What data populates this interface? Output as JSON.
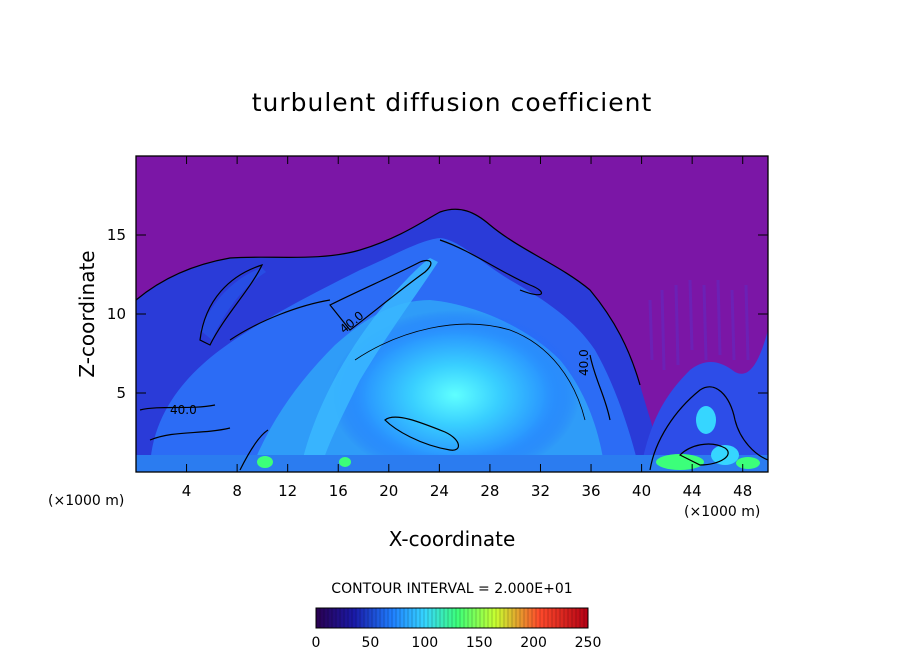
{
  "chart_data": {
    "type": "heatmap",
    "title": "turbulent diffusion coefficient",
    "xlabel": "X-coordinate",
    "ylabel": "Z-coordinate",
    "x_unit_left": "(×1000 m)",
    "x_unit_right": "(×1000 m)",
    "xlim": [
      0,
      50
    ],
    "ylim": [
      0,
      20
    ],
    "x_ticks": [
      4,
      8,
      12,
      16,
      20,
      24,
      28,
      32,
      36,
      40,
      44,
      48
    ],
    "y_ticks": [
      5,
      10,
      15
    ],
    "contour_interval_text": "CONTOUR INTERVAL = 2.000E+01",
    "contour_labels": [
      "40.0",
      "40.0",
      "40.0"
    ],
    "colorbar": {
      "range": [
        0,
        250
      ],
      "ticks": [
        0,
        50,
        100,
        150,
        200,
        250
      ],
      "colors": [
        "#2a0050",
        "#1a1aa8",
        "#1f7fff",
        "#36d6ff",
        "#3cff7a",
        "#c8ff30",
        "#ff4b2b",
        "#b40014"
      ]
    },
    "field_description": "Values mostly 0 (purple) above storm; 20-80 within cloud region; maximum ~80-100 near center (x~25, z~5); scattered high values near the surface at x~44-49."
  }
}
